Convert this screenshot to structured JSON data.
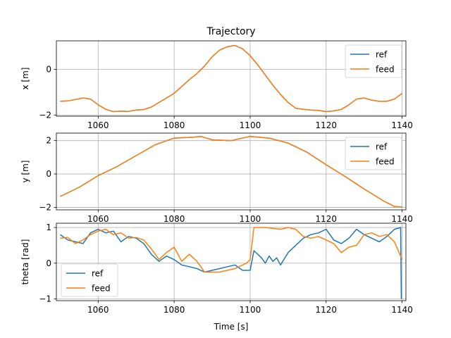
{
  "figure": {
    "title": "Trajectory",
    "xlabel": "Time [s]"
  },
  "colors": {
    "ref": "#1f77b4",
    "feed": "#ff7f0e",
    "grid": "#b0b0b0",
    "axis": "#000000"
  },
  "chart_data": [
    {
      "type": "line",
      "title": "Trajectory",
      "ylabel": "x [m]",
      "xlim": [
        1049,
        1141
      ],
      "ylim": [
        -2.05,
        1.25
      ],
      "xticks": [
        1060,
        1080,
        1100,
        1120,
        1140
      ],
      "yticks": [
        -2,
        0
      ],
      "grid": true,
      "legend": "upper right",
      "series": [
        {
          "name": "ref",
          "x": [
            1050,
            1052,
            1054,
            1056,
            1058,
            1060,
            1062,
            1064,
            1066,
            1068,
            1070,
            1072,
            1074,
            1076,
            1078,
            1080,
            1082,
            1084,
            1086,
            1088,
            1090,
            1092,
            1094,
            1096,
            1098,
            1100,
            1102,
            1104,
            1106,
            1108,
            1110,
            1112,
            1114,
            1116,
            1118,
            1120,
            1122,
            1124,
            1126,
            1128,
            1130,
            1132,
            1134,
            1136,
            1138,
            1140
          ],
          "y": [
            -1.4,
            -1.38,
            -1.32,
            -1.25,
            -1.3,
            -1.55,
            -1.75,
            -1.85,
            -1.83,
            -1.84,
            -1.78,
            -1.76,
            -1.65,
            -1.45,
            -1.25,
            -1.05,
            -0.75,
            -0.45,
            -0.18,
            0.15,
            0.55,
            0.85,
            0.99,
            1.05,
            0.9,
            0.6,
            0.2,
            -0.25,
            -0.7,
            -1.1,
            -1.45,
            -1.7,
            -1.75,
            -1.78,
            -1.8,
            -1.85,
            -1.82,
            -1.75,
            -1.55,
            -1.3,
            -1.25,
            -1.35,
            -1.4,
            -1.4,
            -1.3,
            -1.05
          ]
        },
        {
          "name": "feed",
          "x": [
            1050,
            1052,
            1054,
            1056,
            1058,
            1060,
            1062,
            1064,
            1066,
            1068,
            1070,
            1072,
            1074,
            1076,
            1078,
            1080,
            1082,
            1084,
            1086,
            1088,
            1090,
            1092,
            1094,
            1096,
            1098,
            1100,
            1102,
            1104,
            1106,
            1108,
            1110,
            1112,
            1114,
            1116,
            1118,
            1120,
            1122,
            1124,
            1126,
            1128,
            1130,
            1132,
            1134,
            1136,
            1138,
            1140
          ],
          "y": [
            -1.4,
            -1.38,
            -1.32,
            -1.25,
            -1.3,
            -1.55,
            -1.75,
            -1.85,
            -1.83,
            -1.84,
            -1.78,
            -1.76,
            -1.65,
            -1.45,
            -1.25,
            -1.05,
            -0.75,
            -0.45,
            -0.18,
            0.15,
            0.55,
            0.85,
            0.99,
            1.05,
            0.9,
            0.6,
            0.2,
            -0.25,
            -0.7,
            -1.1,
            -1.45,
            -1.7,
            -1.75,
            -1.78,
            -1.8,
            -1.85,
            -1.82,
            -1.75,
            -1.55,
            -1.3,
            -1.25,
            -1.35,
            -1.4,
            -1.4,
            -1.3,
            -1.05
          ]
        }
      ]
    },
    {
      "type": "line",
      "ylabel": "y [m]",
      "xlim": [
        1049,
        1141
      ],
      "ylim": [
        -2.15,
        2.45
      ],
      "xticks": [
        1060,
        1080,
        1100,
        1120,
        1140
      ],
      "yticks": [
        -2,
        0,
        2
      ],
      "grid": true,
      "legend": "upper right",
      "series": [
        {
          "name": "ref",
          "x": [
            1050,
            1055,
            1060,
            1065,
            1070,
            1075,
            1080,
            1085,
            1087,
            1090,
            1095,
            1100,
            1105,
            1110,
            1115,
            1120,
            1125,
            1130,
            1135,
            1138,
            1140
          ],
          "y": [
            -1.35,
            -0.8,
            -0.1,
            0.45,
            1.1,
            1.75,
            2.15,
            2.2,
            2.25,
            2.05,
            2.0,
            2.25,
            2.15,
            1.85,
            1.3,
            0.55,
            -0.15,
            -0.9,
            -1.6,
            -1.95,
            -1.98
          ]
        },
        {
          "name": "feed",
          "x": [
            1050,
            1055,
            1060,
            1065,
            1070,
            1075,
            1080,
            1085,
            1087,
            1090,
            1095,
            1100,
            1105,
            1110,
            1115,
            1120,
            1125,
            1130,
            1135,
            1138,
            1140
          ],
          "y": [
            -1.35,
            -0.8,
            -0.1,
            0.45,
            1.1,
            1.75,
            2.15,
            2.2,
            2.25,
            2.05,
            2.0,
            2.25,
            2.15,
            1.85,
            1.3,
            0.55,
            -0.15,
            -0.9,
            -1.6,
            -1.95,
            -1.98
          ]
        }
      ]
    },
    {
      "type": "line",
      "ylabel": "theta [rad]",
      "xlabel": "Time [s]",
      "xlim": [
        1049,
        1141
      ],
      "ylim": [
        -1.05,
        1.12
      ],
      "xticks": [
        1060,
        1080,
        1100,
        1120,
        1140
      ],
      "yticks": [
        -1,
        0,
        1
      ],
      "grid": true,
      "legend": "lower left",
      "series": [
        {
          "name": "ref",
          "x": [
            1050,
            1052,
            1054,
            1056,
            1058,
            1060,
            1062,
            1064,
            1066,
            1068,
            1070,
            1072,
            1074,
            1076,
            1078,
            1080,
            1082,
            1084,
            1086,
            1088,
            1090,
            1092,
            1094,
            1096,
            1098,
            1100,
            1101,
            1103,
            1104,
            1105,
            1106,
            1107,
            1108,
            1110,
            1112,
            1114,
            1116,
            1118,
            1120,
            1122,
            1124,
            1126,
            1128,
            1130,
            1132,
            1134,
            1136,
            1138,
            1139.6,
            1139.8
          ],
          "y": [
            0.8,
            0.65,
            0.6,
            0.55,
            0.85,
            0.95,
            0.85,
            0.9,
            0.6,
            0.75,
            0.7,
            0.55,
            0.25,
            0.05,
            0.2,
            0.1,
            -0.05,
            -0.1,
            -0.15,
            -0.25,
            -0.2,
            -0.15,
            -0.1,
            -0.05,
            -0.2,
            -0.2,
            0.35,
            0.15,
            0.0,
            0.2,
            0.05,
            0.15,
            -0.05,
            0.3,
            0.5,
            0.7,
            0.8,
            0.85,
            0.95,
            0.65,
            0.55,
            0.7,
            0.95,
            0.8,
            0.7,
            0.6,
            0.75,
            0.95,
            1.0,
            -1.0
          ]
        },
        {
          "name": "feed",
          "x": [
            1050,
            1052,
            1054,
            1056,
            1058,
            1060,
            1062,
            1064,
            1066,
            1068,
            1070,
            1072,
            1074,
            1076,
            1078,
            1080,
            1082,
            1084,
            1086,
            1088,
            1090,
            1092,
            1094,
            1096,
            1098,
            1099,
            1100,
            1101,
            1104,
            1108,
            1110,
            1112,
            1114,
            1116,
            1118,
            1120,
            1122,
            1124,
            1126,
            1128,
            1130,
            1132,
            1134,
            1136,
            1138,
            1140
          ],
          "y": [
            0.7,
            0.72,
            0.55,
            0.65,
            0.8,
            0.9,
            0.95,
            0.8,
            0.85,
            0.7,
            0.72,
            0.65,
            0.4,
            0.1,
            0.3,
            0.45,
            0.05,
            0.25,
            0.05,
            -0.25,
            -0.25,
            -0.25,
            -0.2,
            -0.15,
            -0.05,
            0.0,
            0.1,
            1.0,
            1.0,
            0.95,
            1.0,
            0.95,
            0.75,
            0.7,
            0.75,
            0.65,
            0.55,
            0.3,
            0.45,
            0.5,
            0.8,
            0.85,
            0.75,
            0.8,
            0.6,
            0.1
          ]
        }
      ]
    }
  ]
}
